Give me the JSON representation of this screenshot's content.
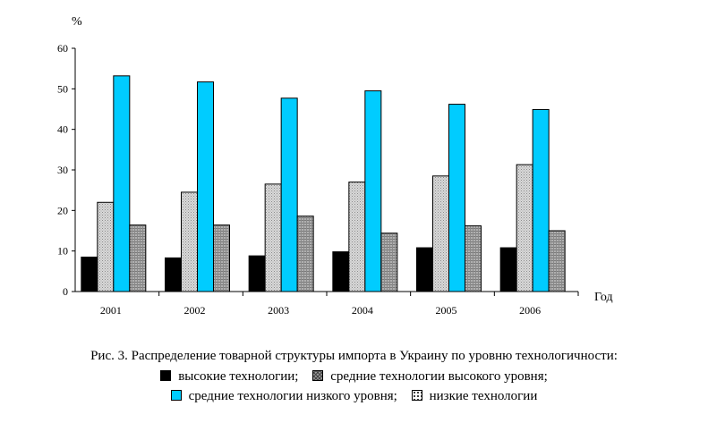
{
  "chart_data": {
    "type": "bar",
    "categories": [
      "2001",
      "2002",
      "2003",
      "2004",
      "2005",
      "2006"
    ],
    "ylim": [
      0,
      60
    ],
    "yticks": [
      0,
      10,
      20,
      30,
      40,
      50,
      60
    ],
    "ylabel": "%",
    "xlabel": "Год",
    "grid": false,
    "series": [
      {
        "name": "высокие технологии",
        "color": "#000000",
        "values": [
          8.5,
          8.3,
          8.8,
          9.8,
          10.8,
          10.8
        ]
      },
      {
        "name": "средние технологии высокого уровня",
        "color": "#c8c8c8",
        "values": [
          22.0,
          24.5,
          26.5,
          27.0,
          28.5,
          31.3
        ]
      },
      {
        "name": "средние технологии низкого уровня",
        "color": "#00ccff",
        "values": [
          53.2,
          51.7,
          47.7,
          49.5,
          46.2,
          44.9
        ]
      },
      {
        "name": "низкие технологии",
        "color": "#a8a8a8",
        "values": [
          16.4,
          16.4,
          18.6,
          14.4,
          16.2,
          15.0
        ]
      }
    ]
  },
  "caption": "Рис. 3. Распределение товарной структуры импорта в Украину по уровню технологичности:",
  "legend": [
    {
      "label": "высокие технологии;",
      "icon": "black-square-icon"
    },
    {
      "label": "средние технологии высокого уровня;",
      "icon": "crosshatch-square-icon"
    },
    {
      "label": "средние технологии низкого уровня;",
      "icon": "cyan-square-icon"
    },
    {
      "label": "низкие технологии",
      "icon": "dotted-square-icon"
    }
  ]
}
